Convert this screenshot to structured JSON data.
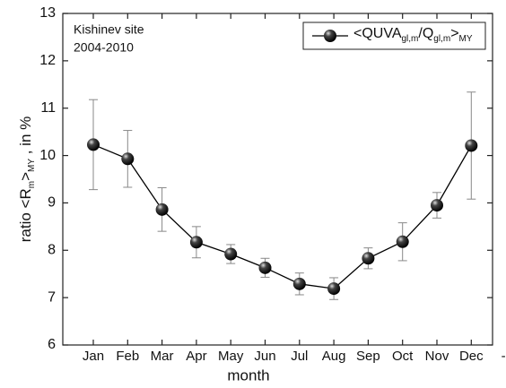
{
  "chart_data": {
    "type": "line",
    "annotations": [
      "Kishinev site",
      "2004-2010"
    ],
    "xlabel": "month",
    "ylabel_parts": [
      {
        "text": "ratio <R"
      },
      {
        "text": "m",
        "sub": true
      },
      {
        "text": ">"
      },
      {
        "text": "MY",
        "sub": true
      },
      {
        "text": " , in %"
      }
    ],
    "categories": [
      "Jan",
      "Feb",
      "Mar",
      "Apr",
      "May",
      "Jun",
      "Jul",
      "Aug",
      "Sep",
      "Oct",
      "Nov",
      "Dec",
      "--"
    ],
    "series": [
      {
        "name_parts": [
          {
            "text": "<QUVA"
          },
          {
            "text": "gl,m",
            "sub": true
          },
          {
            "text": "/Q"
          },
          {
            "text": "gl,m",
            "sub": true
          },
          {
            "text": ">"
          },
          {
            "text": "MY",
            "sub": true
          }
        ],
        "color": "#000000",
        "values": [
          10.23,
          9.93,
          8.86,
          8.17,
          7.92,
          7.63,
          7.29,
          7.19,
          7.83,
          8.18,
          8.95,
          10.21,
          null
        ],
        "errors": [
          0.95,
          0.6,
          0.46,
          0.33,
          0.2,
          0.2,
          0.23,
          0.23,
          0.22,
          0.4,
          0.27,
          1.13,
          null
        ]
      }
    ],
    "ylim": [
      6,
      13
    ],
    "yticks": [
      6,
      7,
      8,
      9,
      10,
      11,
      12,
      13
    ],
    "legend": "upper right",
    "grid": false
  }
}
